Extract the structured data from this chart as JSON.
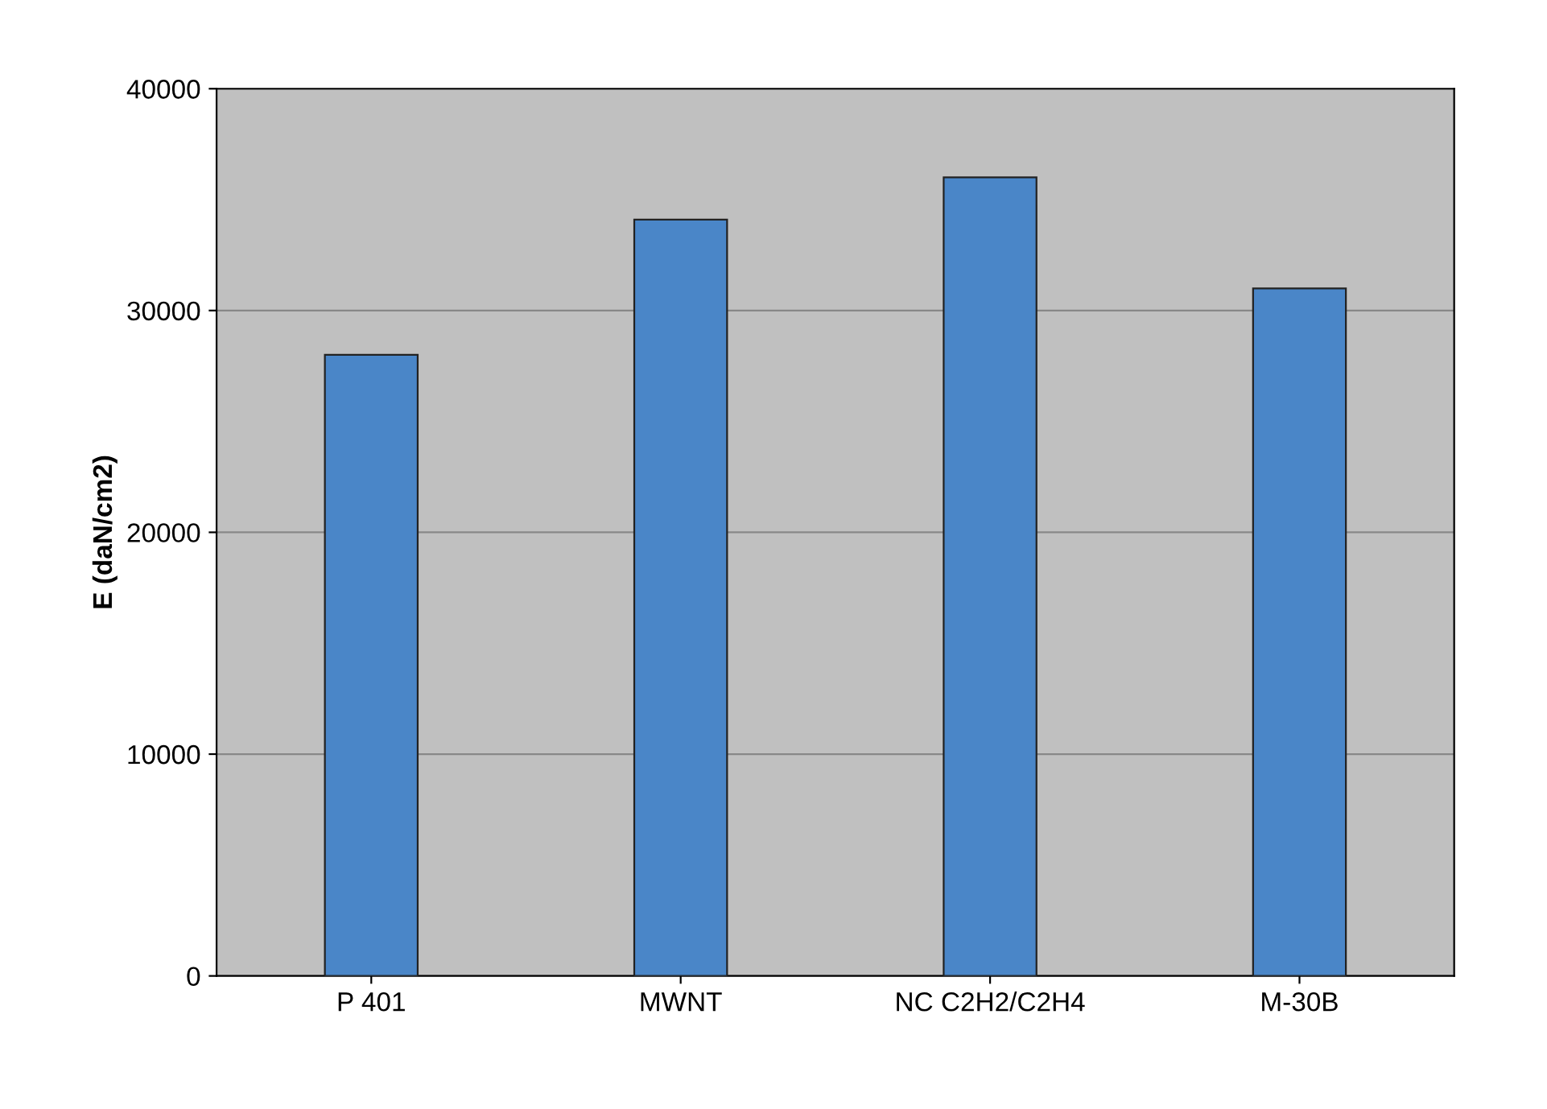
{
  "chart_data": {
    "type": "bar",
    "ylabel": "E (daN/cm2)",
    "categories": [
      "P 401",
      "MWNT",
      "NC C2H2/C2H4",
      "M-30B"
    ],
    "values": [
      28000,
      34100,
      36000,
      31000
    ],
    "color": "#4a86c8",
    "ylim": [
      0,
      40000
    ],
    "yticks": [
      0,
      10000,
      20000,
      30000,
      40000
    ],
    "grid": "y"
  }
}
